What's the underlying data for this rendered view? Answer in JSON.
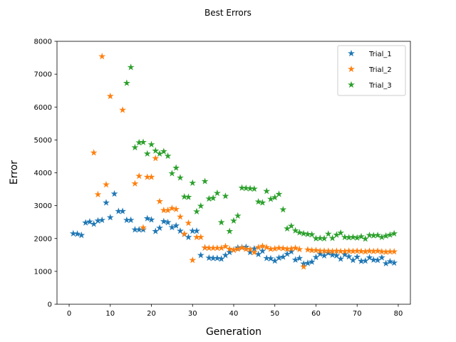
{
  "chart_data": {
    "type": "scatter",
    "title": "Best Errors",
    "xlabel": "Generation",
    "ylabel": "Error",
    "xlim": [
      -2.95,
      82.95
    ],
    "ylim": [
      0,
      8000
    ],
    "xticks": [
      0,
      10,
      20,
      30,
      40,
      50,
      60,
      70,
      80
    ],
    "yticks": [
      0,
      1000,
      2000,
      3000,
      4000,
      5000,
      6000,
      7000,
      8000
    ],
    "grid": false,
    "legend_position": "top-right",
    "marker": "star",
    "series": [
      {
        "name": "Trial_1",
        "color": "#1f77b4",
        "x": [
          1,
          2,
          3,
          4,
          5,
          6,
          7,
          8,
          9,
          10,
          11,
          12,
          13,
          14,
          15,
          16,
          17,
          18,
          19,
          20,
          21,
          22,
          23,
          24,
          25,
          26,
          27,
          28,
          29,
          30,
          31,
          32,
          33,
          34,
          35,
          36,
          37,
          38,
          39,
          40,
          41,
          42,
          43,
          44,
          45,
          46,
          47,
          48,
          49,
          50,
          51,
          52,
          53,
          54,
          55,
          56,
          57,
          58,
          59,
          60,
          61,
          62,
          63,
          64,
          65,
          66,
          67,
          68,
          69,
          70,
          71,
          72,
          73,
          74,
          75,
          76,
          77,
          78,
          79
        ],
        "y": [
          2150,
          2140,
          2100,
          2480,
          2510,
          2440,
          2540,
          2560,
          3090,
          2640,
          3360,
          2830,
          2830,
          2560,
          2560,
          2270,
          2270,
          2270,
          2610,
          2570,
          2220,
          2320,
          2520,
          2490,
          2340,
          2390,
          2230,
          2130,
          2040,
          2230,
          2230,
          1490,
          1720,
          1410,
          1400,
          1400,
          1380,
          1490,
          1580,
          1650,
          1720,
          1730,
          1740,
          1580,
          1690,
          1520,
          1620,
          1400,
          1390,
          1320,
          1410,
          1440,
          1530,
          1600,
          1350,
          1400,
          1230,
          1250,
          1290,
          1430,
          1530,
          1480,
          1560,
          1500,
          1480,
          1380,
          1510,
          1450,
          1340,
          1440,
          1310,
          1320,
          1420,
          1350,
          1340,
          1420,
          1240,
          1300,
          1260
        ]
      },
      {
        "name": "Trial_2",
        "color": "#ff7f0e",
        "x": [
          6,
          7,
          8,
          9,
          10,
          13,
          16,
          17,
          18,
          19,
          20,
          21,
          22,
          23,
          24,
          25,
          26,
          27,
          28,
          29,
          30,
          31,
          32,
          33,
          34,
          35,
          36,
          37,
          38,
          39,
          40,
          41,
          42,
          43,
          44,
          45,
          46,
          47,
          48,
          49,
          50,
          51,
          52,
          53,
          54,
          55,
          56,
          57,
          58,
          59,
          60,
          61,
          62,
          63,
          64,
          65,
          66,
          67,
          68,
          69,
          70,
          71,
          72,
          73,
          74,
          75,
          76,
          77,
          78,
          79
        ],
        "y": [
          4610,
          3340,
          7540,
          3640,
          6330,
          5910,
          3670,
          3900,
          2330,
          3870,
          3870,
          4440,
          3130,
          2860,
          2860,
          2920,
          2890,
          2660,
          2140,
          2470,
          1340,
          2040,
          2040,
          1720,
          1710,
          1710,
          1710,
          1710,
          1760,
          1680,
          1650,
          1680,
          1720,
          1680,
          1670,
          1580,
          1730,
          1770,
          1730,
          1680,
          1690,
          1710,
          1700,
          1680,
          1690,
          1710,
          1670,
          1140,
          1660,
          1640,
          1640,
          1620,
          1620,
          1620,
          1610,
          1620,
          1610,
          1610,
          1620,
          1610,
          1620,
          1610,
          1600,
          1620,
          1610,
          1620,
          1600,
          1590,
          1600,
          1600
        ]
      },
      {
        "name": "Trial_3",
        "color": "#2ca02c",
        "x": [
          14,
          15,
          16,
          17,
          18,
          19,
          20,
          21,
          22,
          23,
          24,
          25,
          26,
          27,
          28,
          29,
          30,
          31,
          32,
          33,
          34,
          35,
          36,
          37,
          38,
          39,
          40,
          41,
          42,
          43,
          44,
          45,
          46,
          47,
          48,
          49,
          50,
          51,
          52,
          53,
          54,
          55,
          56,
          57,
          58,
          59,
          60,
          61,
          62,
          63,
          64,
          65,
          66,
          67,
          68,
          69,
          70,
          71,
          72,
          73,
          74,
          75,
          76,
          77,
          78,
          79
        ],
        "y": [
          6730,
          7210,
          4770,
          4920,
          4930,
          4580,
          4860,
          4670,
          4580,
          4650,
          4510,
          3980,
          4150,
          3850,
          3270,
          3260,
          3690,
          2820,
          2990,
          3740,
          3210,
          3230,
          3380,
          2490,
          3290,
          2220,
          2540,
          2690,
          3540,
          3530,
          3520,
          3510,
          3120,
          3090,
          3440,
          3200,
          3250,
          3350,
          2880,
          2300,
          2380,
          2240,
          2180,
          2150,
          2130,
          2120,
          2000,
          2010,
          2000,
          2140,
          2010,
          2110,
          2170,
          2040,
          2030,
          2040,
          2020,
          2060,
          1990,
          2100,
          2090,
          2100,
          2040,
          2080,
          2110,
          2150
        ]
      }
    ]
  }
}
